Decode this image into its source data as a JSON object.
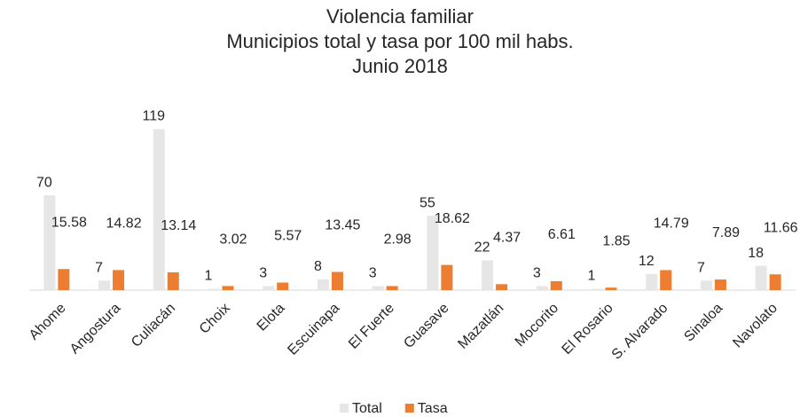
{
  "chart_data": {
    "type": "bar",
    "title": "Violencia familiar",
    "subtitle": [
      "Municipios total y tasa por 100 mil habs.",
      "Junio 2018"
    ],
    "categories": [
      "Ahome",
      "Angostura",
      "Culiacán",
      "Choix",
      "Elota",
      "Escuinapa",
      "El Fuerte",
      "Guasave",
      "Mazatlán",
      "Mocorito",
      "El Rosario",
      "S. Alvarado",
      "Sinaloa",
      "Navolato"
    ],
    "series": [
      {
        "name": "Total",
        "color": "#e7e6e6",
        "values": [
          70,
          7,
          119,
          1,
          3,
          8,
          3,
          55,
          22,
          3,
          1,
          12,
          7,
          18
        ]
      },
      {
        "name": "Tasa",
        "color": "#ed7d31",
        "values": [
          15.58,
          14.82,
          13.14,
          3.02,
          5.57,
          13.45,
          2.98,
          18.62,
          4.37,
          6.61,
          1.85,
          14.79,
          7.89,
          11.66
        ]
      }
    ],
    "ylim": [
      0,
      120
    ],
    "legend": "bottom"
  }
}
